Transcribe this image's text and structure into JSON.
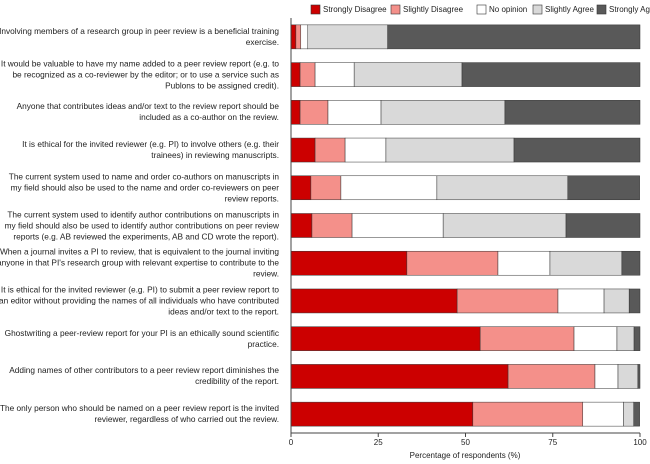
{
  "chart_data": {
    "type": "stacked_barh",
    "x_label": "Percentage of respondents (%)",
    "categories": [
      "Involving members of a research group in peer review is a beneficial training exercise.",
      "It would be valuable to have my name added to a peer review report (e.g. to be recognized as a co-reviewer by the editor; or to use a service such as Publons to be assigned credit).",
      "Anyone that contributes ideas and/or text to the review report should be included as a co-author on the review.",
      "It is ethical for the invited reviewer (e.g. PI) to involve others (e.g. their trainees) in reviewing manuscripts.",
      "The current system used to name and order co-authors on manuscripts in my field should also be used to the name and order co-reviewers on peer review reports.",
      "The current system used to identify author contributions on manuscripts in my field should also be used to identify author contributions on peer review reports (e.g. AB reviewed the experiments, AB and CD wrote the report).",
      "When a journal invites a PI to review, that is equivalent to the journal inviting anyone in that PI's research group with relevant expertise to contribute to the review.",
      "It is ethical for the invited reviewer (e.g. PI) to submit a peer review report to an editor without providing the names of all individuals who have contributed ideas and/or text to the report.",
      "Ghostwriting a peer-review report for your PI is an ethically sound scientific practice.",
      "Adding names of other contributors to a peer review report diminishes the credibility of the report.",
      "The only person who should be named on a peer review report is the invited reviewer, regardless of who carried out the review."
    ],
    "series": [
      {
        "name": "Strongly Disagree",
        "color": "#cc0000",
        "values": [
          1.4,
          2.6,
          2.6,
          6.9,
          5.7,
          6.0,
          33.2,
          47.6,
          54.2,
          62.2,
          52.1
        ]
      },
      {
        "name": "Slightly Disagree",
        "color": "#f4908a",
        "values": [
          1.4,
          4.3,
          8.0,
          8.6,
          8.6,
          11.5,
          26.1,
          28.9,
          26.9,
          24.9,
          31.5
        ]
      },
      {
        "name": "No opinion",
        "color": "#ffffff",
        "values": [
          2.0,
          11.2,
          15.2,
          11.7,
          27.5,
          26.1,
          14.9,
          13.2,
          12.3,
          6.6,
          11.7
        ]
      },
      {
        "name": "Slightly Agree",
        "color": "#d9d9d9",
        "values": [
          22.9,
          30.9,
          35.5,
          36.7,
          37.5,
          35.2,
          20.6,
          7.2,
          4.9,
          5.7,
          2.9
        ]
      },
      {
        "name": "Strongly Agree",
        "color": "#595959",
        "values": [
          72.3,
          51.0,
          38.7,
          36.1,
          20.6,
          21.2,
          5.2,
          3.1,
          1.7,
          0.6,
          1.7
        ]
      }
    ],
    "xlim": [
      0,
      100
    ],
    "xticks": [
      0,
      25,
      50,
      75,
      100
    ],
    "legend": "top"
  }
}
